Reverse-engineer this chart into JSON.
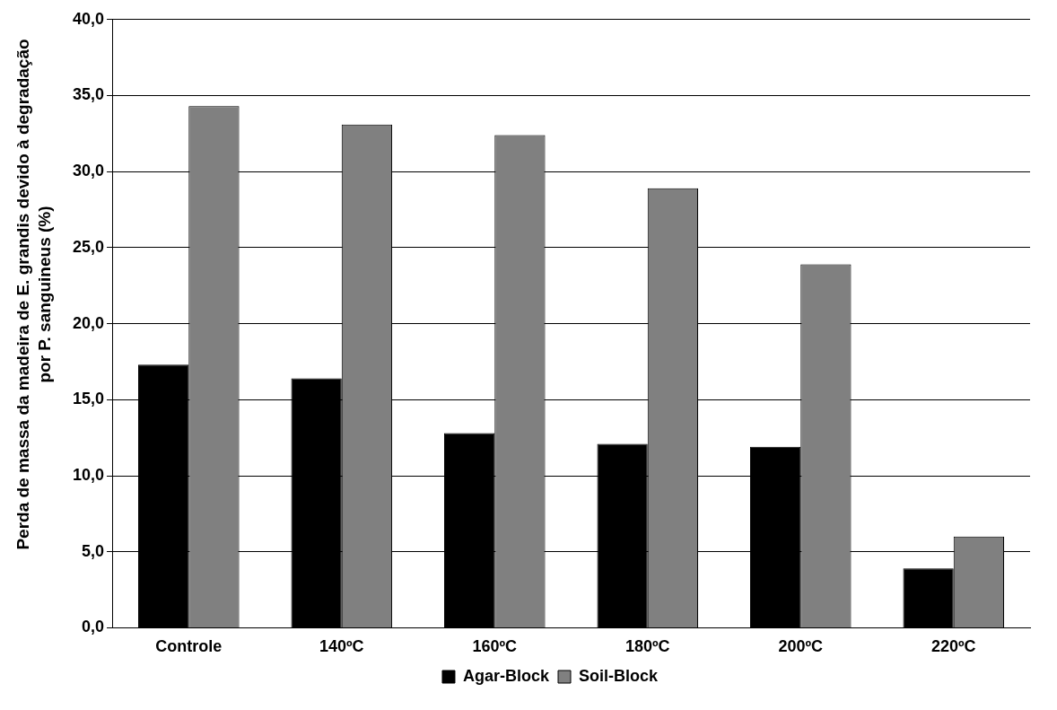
{
  "chart_data": {
    "type": "bar",
    "ylabel": "Perda de massa da madeira de E. grandis devido à degradação por P. sanguineus (%)",
    "categories": [
      "Controle",
      "140ºC",
      "160ºC",
      "180ºC",
      "200ºC",
      "220ºC"
    ],
    "series": [
      {
        "name": "Agar-Block",
        "color": "#000000",
        "values": [
          17.3,
          16.4,
          12.8,
          12.1,
          11.9,
          3.9
        ]
      },
      {
        "name": "Soil-Block",
        "color": "#808080",
        "values": [
          34.3,
          33.1,
          32.4,
          28.9,
          23.9,
          6.0
        ]
      }
    ],
    "ylim": [
      0,
      40
    ],
    "yticks": [
      {
        "value": 0,
        "label": "0,0"
      },
      {
        "value": 5,
        "label": "5,0"
      },
      {
        "value": 10,
        "label": "10,0"
      },
      {
        "value": 15,
        "label": "15,0"
      },
      {
        "value": 20,
        "label": "20,0"
      },
      {
        "value": 25,
        "label": "25,0"
      },
      {
        "value": 30,
        "label": "30,0"
      },
      {
        "value": 35,
        "label": "35,0"
      },
      {
        "value": 40,
        "label": "40,0"
      }
    ],
    "grid": "y",
    "legend": "bottom"
  }
}
